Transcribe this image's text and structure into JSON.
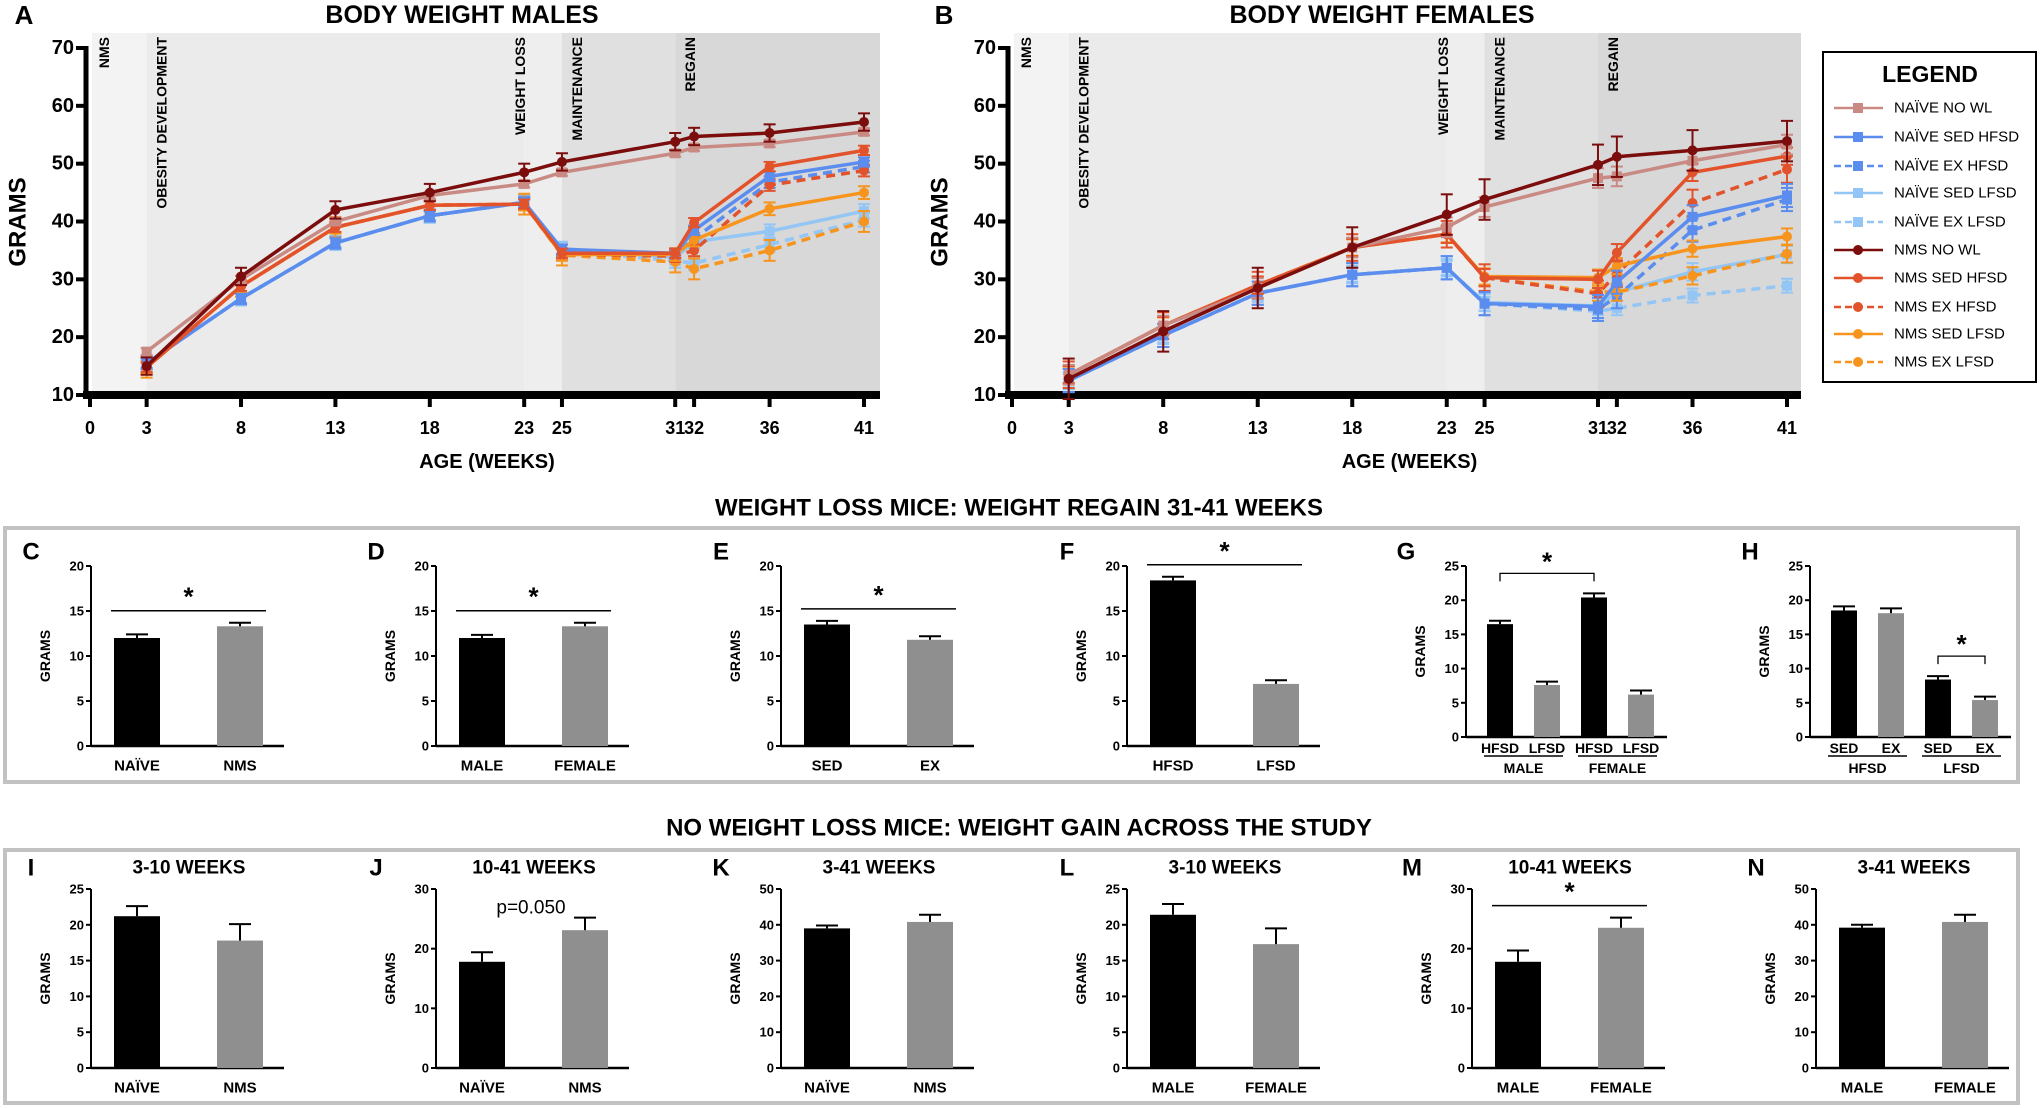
{
  "sections": [
    "WEIGHT LOSS MICE: WEIGHT REGAIN 31-41 WEEKS",
    "NO WEIGHT LOSS MICE: WEIGHT GAIN ACROSS THE STUDY"
  ],
  "legend": {
    "title": "LEGEND",
    "items": [
      {
        "name": "NAÏVE NO WL",
        "color": "#c98a84",
        "dash": false,
        "marker": "square"
      },
      {
        "name": "NAÏVE SED HFSD",
        "color": "#5b8def",
        "dash": false,
        "marker": "square"
      },
      {
        "name": "NAÏVE EX HFSD",
        "color": "#5b8def",
        "dash": true,
        "marker": "square"
      },
      {
        "name": "NAÏVE SED LFSD",
        "color": "#93c6f5",
        "dash": false,
        "marker": "square"
      },
      {
        "name": "NAÏVE EX LFSD",
        "color": "#93c6f5",
        "dash": true,
        "marker": "square"
      },
      {
        "name": "NMS NO WL",
        "color": "#7b0d0d",
        "dash": false,
        "marker": "circle"
      },
      {
        "name": "NMS SED HFSD",
        "color": "#e2532b",
        "dash": false,
        "marker": "circle"
      },
      {
        "name": "NMS EX HFSD",
        "color": "#e2532b",
        "dash": true,
        "marker": "circle"
      },
      {
        "name": "NMS SED LFSD",
        "color": "#f7941d",
        "dash": false,
        "marker": "circle"
      },
      {
        "name": "NMS EX LFSD",
        "color": "#f7941d",
        "dash": true,
        "marker": "circle"
      }
    ]
  },
  "chart_data": [
    {
      "panel": "A",
      "type": "line",
      "title": "BODY WEIGHT MALES",
      "xlabel": "AGE (WEEKS)",
      "ylabel": "GRAMS",
      "xlim": [
        0,
        41
      ],
      "ylim": [
        10,
        70
      ],
      "xticks": [
        0,
        3,
        8,
        13,
        18,
        23,
        25,
        31,
        32,
        36,
        41
      ],
      "yticks": [
        10,
        20,
        30,
        40,
        50,
        60,
        70
      ],
      "phases": [
        {
          "label": "NMS",
          "start": 0,
          "end": 3,
          "shade": "#f3f3f3"
        },
        {
          "label": "OBESITY DEVELOPMENT",
          "start": 3,
          "end": 23,
          "shade": "#ebebeb"
        },
        {
          "label": "WEIGHT LOSS",
          "start": 23,
          "end": 25,
          "shade": "#eeeeee"
        },
        {
          "label": "MAINTENANCE",
          "start": 25,
          "end": 31,
          "shade": "#e0e0e0"
        },
        {
          "label": "REGAIN",
          "start": 31,
          "end": 41,
          "shade": "#d8d8d8"
        }
      ],
      "x": [
        3,
        8,
        13,
        18,
        23,
        25,
        31,
        32,
        36,
        41
      ],
      "series": [
        {
          "name": "NAÏVE EX LFSD",
          "values": [
            15.5,
            26.7,
            36.3,
            41,
            43.3,
            35,
            33.2,
            32.8,
            36,
            40.3
          ],
          "err": 1.2
        },
        {
          "name": "NAÏVE SED LFSD",
          "values": [
            15.5,
            26.7,
            36.3,
            41,
            43.3,
            35.3,
            33.8,
            36.5,
            38.3,
            41.8
          ],
          "err": 1.2
        },
        {
          "name": "NAÏVE EX HFSD",
          "values": [
            15.5,
            26.7,
            36.3,
            41,
            43.3,
            35,
            34.3,
            37,
            46.8,
            49.5
          ],
          "err": 1
        },
        {
          "name": "NMS EX LFSD",
          "values": [
            14.8,
            28.8,
            39,
            42.8,
            43,
            34.2,
            33,
            31.8,
            35,
            40
          ],
          "err": 1.8
        },
        {
          "name": "NMS EX HFSD",
          "values": [
            14.8,
            28.8,
            39,
            42.8,
            43,
            34.3,
            34,
            35,
            46.3,
            48.8
          ],
          "err": 1
        },
        {
          "name": "NMS SED LFSD",
          "values": [
            14.8,
            28.8,
            39,
            42.8,
            43,
            34.3,
            34.3,
            36.8,
            42.2,
            45
          ],
          "err": 1.1
        },
        {
          "name": "NAÏVE SED HFSD",
          "values": [
            15.5,
            26.7,
            36.3,
            41,
            43.3,
            35.2,
            34.5,
            38.5,
            47.8,
            50.3
          ],
          "err": 0.8
        },
        {
          "name": "NMS SED HFSD",
          "values": [
            14.8,
            28.8,
            39,
            42.8,
            43,
            34.5,
            34.5,
            39.8,
            49.5,
            52.3
          ],
          "err": 0.8
        },
        {
          "name": "NAÏVE NO WL",
          "values": [
            17.5,
            30,
            40,
            44.5,
            46.5,
            48.5,
            51.8,
            52.8,
            53.5,
            55.5
          ],
          "err": 0.6
        },
        {
          "name": "NMS NO WL",
          "values": [
            15,
            30.5,
            42,
            45,
            48.5,
            50.3,
            53.8,
            54.7,
            55.3,
            57.2
          ],
          "err": 1.5
        }
      ]
    },
    {
      "panel": "B",
      "type": "line",
      "title": "BODY WEIGHT FEMALES",
      "xlabel": "AGE (WEEKS)",
      "ylabel": "GRAMS",
      "xlim": [
        0,
        41
      ],
      "ylim": [
        10,
        70
      ],
      "xticks": [
        0,
        3,
        8,
        13,
        18,
        23,
        25,
        31,
        32,
        36,
        41
      ],
      "yticks": [
        10,
        20,
        30,
        40,
        50,
        60,
        70
      ],
      "phases": [
        {
          "label": "NMS",
          "start": 0,
          "end": 3,
          "shade": "#f3f3f3"
        },
        {
          "label": "OBESITY DEVELOPMENT",
          "start": 3,
          "end": 23,
          "shade": "#ebebeb"
        },
        {
          "label": "WEIGHT LOSS",
          "start": 23,
          "end": 25,
          "shade": "#eeeeee"
        },
        {
          "label": "MAINTENANCE",
          "start": 25,
          "end": 31,
          "shade": "#e0e0e0"
        },
        {
          "label": "REGAIN",
          "start": 31,
          "end": 41,
          "shade": "#d8d8d8"
        }
      ],
      "x": [
        3,
        8,
        13,
        18,
        23,
        25,
        31,
        32,
        36,
        41
      ],
      "series": [
        {
          "name": "NAÏVE EX LFSD",
          "values": [
            12.5,
            20.3,
            27.6,
            30.8,
            32,
            25.8,
            24.5,
            25,
            27.2,
            28.9
          ],
          "err": 1.2
        },
        {
          "name": "NAÏVE SED LFSD",
          "values": [
            12.5,
            20.3,
            27.6,
            30.8,
            32,
            26,
            25.4,
            27.8,
            31.3,
            34.3
          ],
          "err": 1.5
        },
        {
          "name": "NAÏVE EX HFSD",
          "values": [
            12.5,
            20.3,
            27.6,
            30.8,
            32,
            25.8,
            24.8,
            27,
            38.5,
            43.8
          ],
          "err": 2
        },
        {
          "name": "NMS EX LFSD",
          "values": [
            13.5,
            22,
            29,
            35.5,
            37.8,
            30.3,
            27.8,
            27.8,
            30.6,
            34.4
          ],
          "err": 1.5
        },
        {
          "name": "NMS EX HFSD",
          "values": [
            13.5,
            22,
            29,
            35.5,
            37.8,
            30.3,
            27.5,
            31,
            43.2,
            49
          ],
          "err": 2.3
        },
        {
          "name": "NMS SED LFSD",
          "values": [
            13.5,
            22,
            29,
            35.5,
            37.8,
            30.5,
            30.3,
            32.3,
            35.3,
            37.4
          ],
          "err": 1.4
        },
        {
          "name": "NAÏVE SED HFSD",
          "values": [
            12.5,
            20.3,
            27.6,
            30.8,
            32,
            25.8,
            25.3,
            29.5,
            40.8,
            44.5
          ],
          "err": 2
        },
        {
          "name": "NMS SED HFSD",
          "values": [
            13.5,
            22,
            29,
            35.5,
            37.8,
            30.3,
            30,
            34.6,
            48.5,
            51.3
          ],
          "err": 1.5
        },
        {
          "name": "NAÏVE NO WL",
          "values": [
            13.5,
            22,
            28.5,
            35.5,
            39,
            42.5,
            47.5,
            47.8,
            50.5,
            53.3
          ],
          "err": 1.7
        },
        {
          "name": "NMS NO WL",
          "values": [
            12.8,
            21,
            28.5,
            35.5,
            41.2,
            43.8,
            49.8,
            51.2,
            52.3,
            53.9
          ],
          "err": 3.5
        }
      ]
    },
    {
      "panel": "C",
      "type": "bar",
      "ylabel": "GRAMS",
      "ylim": [
        0,
        20
      ],
      "yticks": [
        0,
        5,
        10,
        15,
        20
      ],
      "categories": [
        "NAÏVE",
        "NMS"
      ],
      "values": [
        12.0,
        13.3
      ],
      "err": [
        0.4,
        0.4
      ],
      "colors": [
        "#000000",
        "#8f8f8f"
      ],
      "significance": [
        {
          "from": 0,
          "to": 1,
          "label": "*",
          "style": "line"
        }
      ]
    },
    {
      "panel": "D",
      "type": "bar",
      "ylabel": "GRAMS",
      "ylim": [
        0,
        20
      ],
      "yticks": [
        0,
        5,
        10,
        15,
        20
      ],
      "categories": [
        "MALE",
        "FEMALE"
      ],
      "values": [
        12.0,
        13.3
      ],
      "err": [
        0.35,
        0.4
      ],
      "colors": [
        "#000000",
        "#8f8f8f"
      ],
      "significance": [
        {
          "from": 0,
          "to": 1,
          "label": "*",
          "style": "line"
        }
      ]
    },
    {
      "panel": "E",
      "type": "bar",
      "ylabel": "GRAMS",
      "ylim": [
        0,
        20
      ],
      "yticks": [
        0,
        5,
        10,
        15,
        20
      ],
      "categories": [
        "SED",
        "EX"
      ],
      "values": [
        13.5,
        11.8
      ],
      "err": [
        0.4,
        0.4
      ],
      "colors": [
        "#000000",
        "#8f8f8f"
      ],
      "significance": [
        {
          "from": 0,
          "to": 1,
          "label": "*",
          "style": "line"
        }
      ]
    },
    {
      "panel": "F",
      "type": "bar",
      "ylabel": "GRAMS",
      "ylim": [
        0,
        20
      ],
      "yticks": [
        0,
        5,
        10,
        15,
        20
      ],
      "categories": [
        "HFSD",
        "LFSD"
      ],
      "values": [
        18.4,
        6.9
      ],
      "err": [
        0.4,
        0.4
      ],
      "colors": [
        "#000000",
        "#8f8f8f"
      ],
      "significance": [
        {
          "from": 0,
          "to": 1,
          "label": "*",
          "style": "line"
        }
      ]
    },
    {
      "panel": "G",
      "type": "bar",
      "ylabel": "GRAMS",
      "ylim": [
        0,
        25
      ],
      "yticks": [
        0,
        5,
        10,
        15,
        20,
        25
      ],
      "categories": [
        "HFSD",
        "LFSD",
        "HFSD",
        "LFSD"
      ],
      "groups": [
        "MALE",
        "FEMALE"
      ],
      "values": [
        16.5,
        7.6,
        20.4,
        6.2
      ],
      "err": [
        0.5,
        0.5,
        0.6,
        0.6
      ],
      "colors": [
        "#000000",
        "#8f8f8f",
        "#000000",
        "#8f8f8f"
      ],
      "significance": [
        {
          "from": 0,
          "to": 2,
          "label": "*",
          "style": "bracket"
        }
      ]
    },
    {
      "panel": "H",
      "type": "bar",
      "ylabel": "GRAMS",
      "ylim": [
        0,
        25
      ],
      "yticks": [
        0,
        5,
        10,
        15,
        20,
        25
      ],
      "categories": [
        "SED",
        "EX",
        "SED",
        "EX"
      ],
      "groups": [
        "HFSD",
        "LFSD"
      ],
      "values": [
        18.5,
        18.1,
        8.4,
        5.4
      ],
      "err": [
        0.6,
        0.7,
        0.5,
        0.5
      ],
      "colors": [
        "#000000",
        "#8f8f8f",
        "#000000",
        "#8f8f8f"
      ],
      "significance": [
        {
          "from": 2,
          "to": 3,
          "label": "*",
          "style": "bracket"
        }
      ]
    },
    {
      "panel": "I",
      "type": "bar",
      "subtitle": "3-10 WEEKS",
      "ylabel": "GRAMS",
      "ylim": [
        0,
        25
      ],
      "yticks": [
        0,
        5,
        10,
        15,
        20,
        25
      ],
      "categories": [
        "NAÏVE",
        "NMS"
      ],
      "values": [
        21.2,
        17.8
      ],
      "err": [
        1.4,
        2.3
      ],
      "colors": [
        "#000000",
        "#8f8f8f"
      ],
      "significance": []
    },
    {
      "panel": "J",
      "type": "bar",
      "subtitle": "10-41 WEEKS",
      "ylabel": "GRAMS",
      "ylim": [
        0,
        30
      ],
      "yticks": [
        0,
        10,
        20,
        30
      ],
      "categories": [
        "NAÏVE",
        "NMS"
      ],
      "values": [
        17.8,
        23.1
      ],
      "err": [
        1.6,
        2.1
      ],
      "colors": [
        "#000000",
        "#8f8f8f"
      ],
      "significance": [],
      "annotation": "p=0.050"
    },
    {
      "panel": "K",
      "type": "bar",
      "subtitle": "3-41 WEEKS",
      "ylabel": "GRAMS",
      "ylim": [
        0,
        50
      ],
      "yticks": [
        0,
        10,
        20,
        30,
        40,
        50
      ],
      "categories": [
        "NAÏVE",
        "NMS"
      ],
      "values": [
        39.0,
        40.8
      ],
      "err": [
        0.8,
        2.0
      ],
      "colors": [
        "#000000",
        "#8f8f8f"
      ],
      "significance": []
    },
    {
      "panel": "L",
      "type": "bar",
      "subtitle": "3-10 WEEKS",
      "ylabel": "GRAMS",
      "ylim": [
        0,
        25
      ],
      "yticks": [
        0,
        5,
        10,
        15,
        20,
        25
      ],
      "categories": [
        "MALE",
        "FEMALE"
      ],
      "values": [
        21.4,
        17.3
      ],
      "err": [
        1.5,
        2.2
      ],
      "colors": [
        "#000000",
        "#8f8f8f"
      ],
      "significance": []
    },
    {
      "panel": "M",
      "type": "bar",
      "subtitle": "10-41 WEEKS",
      "ylabel": "GRAMS",
      "ylim": [
        0,
        30
      ],
      "yticks": [
        0,
        10,
        20,
        30
      ],
      "categories": [
        "MALE",
        "FEMALE"
      ],
      "values": [
        17.8,
        23.5
      ],
      "err": [
        1.9,
        1.7
      ],
      "colors": [
        "#000000",
        "#8f8f8f"
      ],
      "significance": [
        {
          "from": 0,
          "to": 1,
          "label": "*",
          "style": "line"
        }
      ]
    },
    {
      "panel": "N",
      "type": "bar",
      "subtitle": "3-41 WEEKS",
      "ylabel": "GRAMS",
      "ylim": [
        0,
        50
      ],
      "yticks": [
        0,
        10,
        20,
        30,
        40,
        50
      ],
      "categories": [
        "MALE",
        "FEMALE"
      ],
      "values": [
        39.2,
        40.8
      ],
      "err": [
        0.8,
        2.0
      ],
      "colors": [
        "#000000",
        "#8f8f8f"
      ],
      "significance": []
    }
  ]
}
